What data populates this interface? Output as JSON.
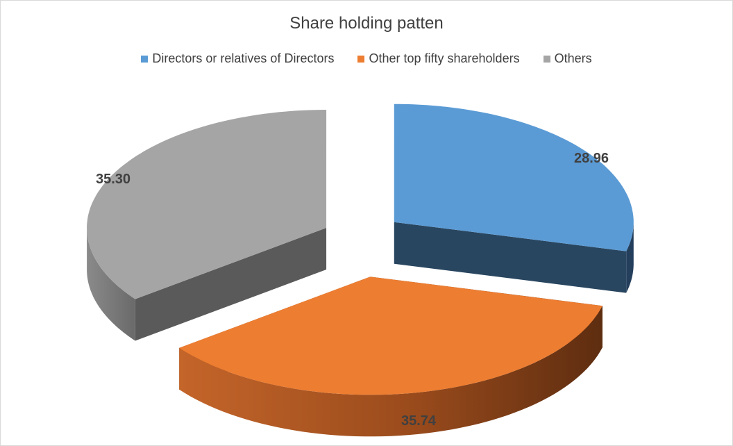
{
  "chart_data": {
    "type": "pie",
    "title": "Share holding patten",
    "categories": [
      "Directors or relatives of Directors",
      "Other top fifty shareholders",
      "Others"
    ],
    "values": [
      28.96,
      35.74,
      35.3
    ],
    "value_labels": [
      "28.96",
      "35.74",
      "35.30"
    ],
    "colors": [
      "#5b9bd5",
      "#ed7d31",
      "#a5a5a5"
    ],
    "legend_position": "top",
    "style": "3d-exploded"
  }
}
